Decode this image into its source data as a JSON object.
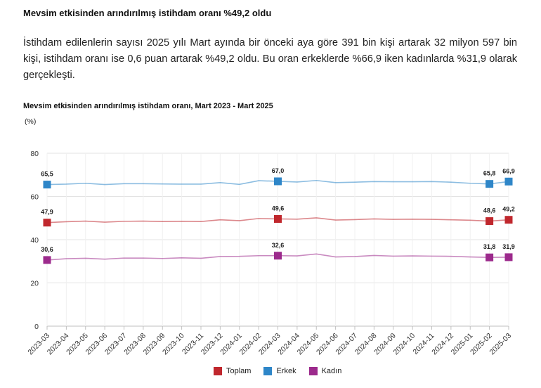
{
  "headline": "Mevsim etkisinden arındırılmış istihdam oranı %49,2 oldu",
  "paragraph": "İstihdam edilenlerin sayısı 2025 yılı Mart ayında bir önceki aya göre 391 bin kişi artarak 32 milyon 597 bin kişi, istihdam oranı ise 0,6 puan artarak %49,2 oldu. Bu oran erkeklerde %66,9 iken kadınlarda %31,9 olarak gerçekleşti.",
  "chart_data": {
    "type": "line",
    "title": "Mevsim etkisinden arındırılmış istihdam oranı, Mart 2023 - Mart 2025",
    "ylabel": "(%)",
    "xlabel": "",
    "ylim": [
      0,
      80
    ],
    "yticks": [
      0,
      20,
      40,
      60,
      80
    ],
    "grid": true,
    "legend_position": "bottom",
    "categories": [
      "2023-03",
      "2023-04",
      "2023-05",
      "2023-06",
      "2023-07",
      "2023-08",
      "2023-09",
      "2023-10",
      "2023-11",
      "2023-12",
      "2024-01",
      "2024-02",
      "2024-03",
      "2024-04",
      "2024-05",
      "2024-06",
      "2024-07",
      "2024-08",
      "2024-09",
      "2024-10",
      "2024-11",
      "2024-12",
      "2025-01",
      "2025-02",
      "2025-03"
    ],
    "series": [
      {
        "name": "Toplam",
        "color": "#c0272d",
        "values": [
          47.9,
          48.3,
          48.6,
          48.1,
          48.5,
          48.6,
          48.4,
          48.5,
          48.4,
          49.2,
          48.8,
          49.8,
          49.6,
          49.5,
          50.1,
          49.1,
          49.3,
          49.6,
          49.4,
          49.5,
          49.4,
          49.2,
          49.0,
          48.6,
          49.2
        ],
        "labels": {
          "0": "47,9",
          "12": "49,6",
          "23": "48,6",
          "24": "49,2"
        }
      },
      {
        "name": "Erkek",
        "color": "#2e86c8",
        "values": [
          65.5,
          65.7,
          66.1,
          65.5,
          65.9,
          65.9,
          65.8,
          65.7,
          65.7,
          66.4,
          65.6,
          67.3,
          67.0,
          66.7,
          67.4,
          66.4,
          66.6,
          66.9,
          66.8,
          66.8,
          66.9,
          66.6,
          66.1,
          65.8,
          66.9
        ],
        "labels": {
          "0": "65,5",
          "12": "67,0",
          "23": "65,8",
          "24": "66,9"
        }
      },
      {
        "name": "Kadın",
        "color": "#9c2a8c",
        "values": [
          30.6,
          31.2,
          31.4,
          31.0,
          31.5,
          31.5,
          31.3,
          31.6,
          31.4,
          32.2,
          32.3,
          32.6,
          32.6,
          32.5,
          33.4,
          32.0,
          32.2,
          32.7,
          32.4,
          32.5,
          32.4,
          32.3,
          32.0,
          31.8,
          31.9
        ],
        "labels": {
          "0": "30,6",
          "12": "32,6",
          "23": "31,8",
          "24": "31,9"
        }
      }
    ]
  }
}
